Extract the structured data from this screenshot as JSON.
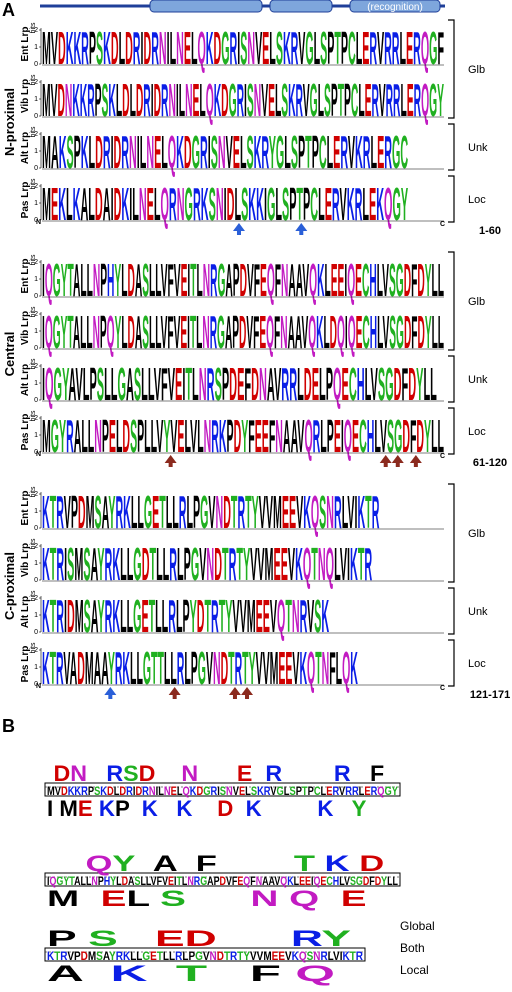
{
  "panel_a": {
    "label": "A",
    "header": "(recognition)",
    "unit": "bits",
    "yticks": [
      0,
      1,
      2
    ],
    "n_end": "N",
    "c_end": "C",
    "sections": [
      {
        "title": "N-proximal",
        "range": "1-60",
        "rows": [
          {
            "species": "Ent Lrp",
            "sequence": "MVDKKRPSKDLDRIDRNILNELQKDGRISNVELSKRVGLSPTPCLERVRRLERQGF"
          },
          {
            "species": "Vib Lrp",
            "sequence": "MVDNKKRPSKLDLDRIDRNILNELQKDGRISNVELSKRVGLSPTPCLERVRRLERQGY"
          },
          {
            "species": "Alt Lrp",
            "sequence": "MAKSPKLDRIDRNILNELQKDGRISNVELSKRYGLSPTPCLERVKRLERGC"
          },
          {
            "species": "Pas Lrp",
            "sequence": "MEKLKALDAIDKILNELQRNGRKSNIDLSKKIGLSPTPCLERVKRLEKQGY"
          }
        ],
        "groups": [
          {
            "label": "Glb",
            "rows": 2
          },
          {
            "label": "Unk",
            "rows": 1
          },
          {
            "label": "Loc",
            "rows": 1
          }
        ]
      },
      {
        "title": "Central",
        "range": "61-120",
        "rows": [
          {
            "species": "Ent Lrp",
            "sequence": "IQGYTALLNPHYLDASLLVFVEITLNRGAPDVFEQFNAAVQKLEEIQECHLVSGDFDYLL"
          },
          {
            "species": "Vib Lrp",
            "sequence": "IQGYTALLNPQYLDASLLVFVEITLNRGAPDVFEQFNAAVQKLDQIQECHLVSGDFDYLL"
          },
          {
            "species": "Alt Lrp",
            "sequence": "IQGYAVLPSLLGASLLVFVEITLNRSPDEFDNAVRRLDELPQECHLVSGDFDYLL"
          },
          {
            "species": "Pas Lrp",
            "sequence": "MGYRALLNPELDSPLLVYVELVLNRKPDYFEEFNAAVQRLPEIQECHLVSGDFDYLL"
          }
        ],
        "groups": [
          {
            "label": "Glb",
            "rows": 2
          },
          {
            "label": "Unk",
            "rows": 1
          },
          {
            "label": "Loc",
            "rows": 1
          }
        ]
      },
      {
        "title": "C-proximal",
        "range": "121-171",
        "rows": [
          {
            "species": "Ent Lrp",
            "sequence": "KTRVPDMSAYRKLLGETLLRLPGVNDTRTYVVMEEVKQSNRLVIKTR"
          },
          {
            "species": "Vib Lrp",
            "sequence": "KTRISMSAYRKLLGDTLLRLPGVNDTRTYVVMEEVKQTNQLVIKTR"
          },
          {
            "species": "Alt Lrp",
            "sequence": "KTRIDMSAYRKLLGETLLRLPYDTRTYVVMEEVQTNRVSK"
          },
          {
            "species": "Pas Lrp",
            "sequence": "KTRVADMAAYRKLLGTTLLRLPGVNDTRTYVVMEEVKQTNFLQK"
          }
        ],
        "groups": [
          {
            "label": "Glb",
            "rows": 2
          },
          {
            "label": "Unk",
            "rows": 1
          },
          {
            "label": "Loc",
            "rows": 1
          }
        ]
      }
    ]
  },
  "panel_b": {
    "label": "B",
    "lines": [
      {
        "top": " DN   RSD    N      E  R        R   F",
        "both": "MVDKKRPSKDLDRIDRNILNELQKDGRISNVELSKRVGLSPTPCLERVRRLERQGY",
        "bottom": "I ME KP  K   K    D  K         K   Y"
      },
      {
        "top": "    QY  A  F        T K D",
        "both": "IQGYTALLNPHYLDASLLVFVEITLNRGAPDVFEQFNAAVQKLEEIQECHLVSGDFDYLL",
        "bottom": "M  EL S      N Q  E"
      },
      {
        "top": "P S   ED      RY",
        "both": "KTRVPDMSAYRKLLGETLLRLPGVNDTRTYVVMEEVKQSNRLVIKTR",
        "bottom": "A  K  T   F Q"
      }
    ],
    "legend": [
      "Global",
      "Both",
      "Local"
    ]
  }
}
